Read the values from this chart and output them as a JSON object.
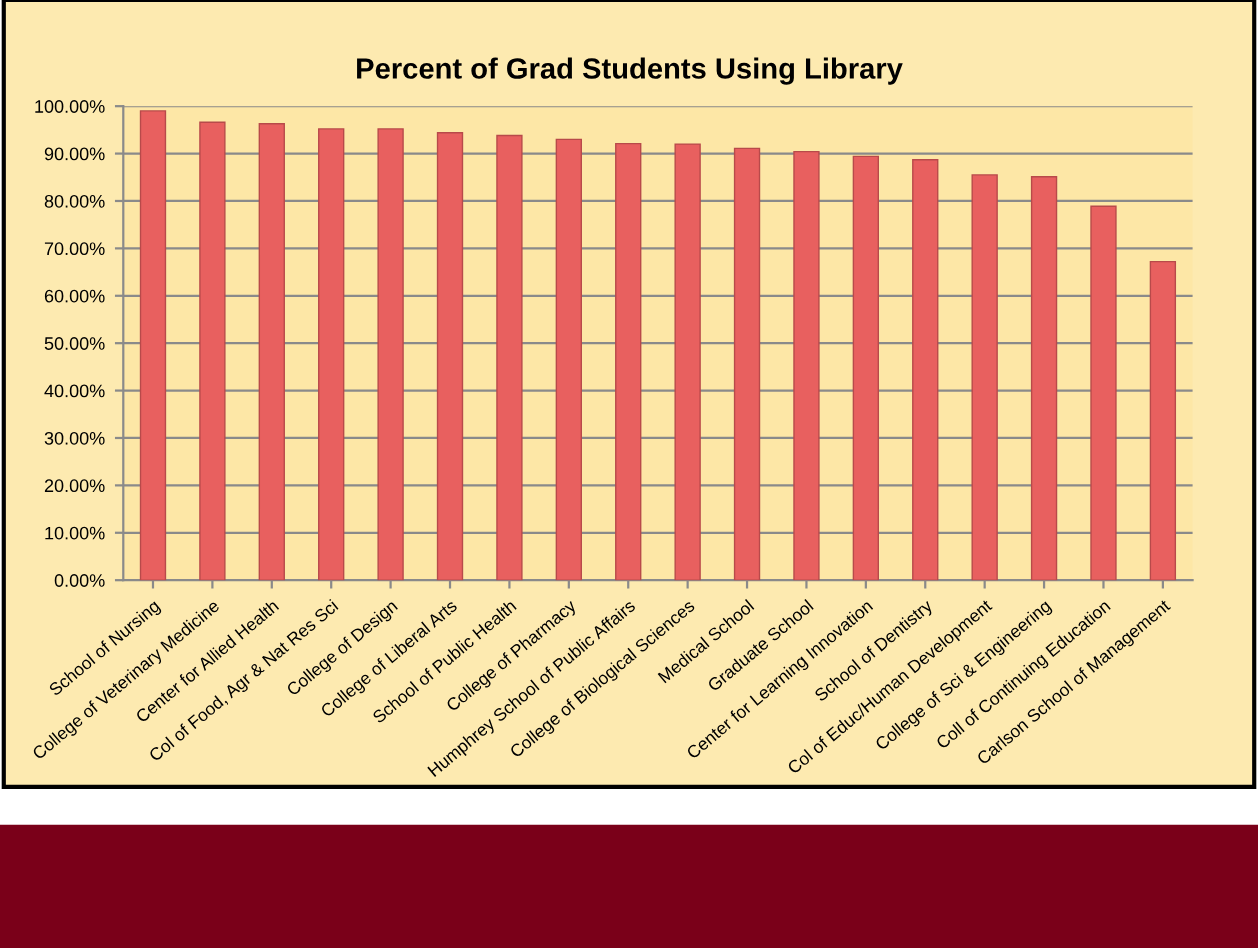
{
  "chart_data": {
    "type": "bar",
    "title": "Percent of Grad Students Using Library",
    "categories": [
      "School of Nursing",
      "College of Veterinary Medicine",
      "Center for Allied Health",
      "Col of Food, Agr & Nat Res Sci",
      "College of Design",
      "College of Liberal Arts",
      "School of Public Health",
      "College of Pharmacy",
      "Humphrey School of Public Affairs",
      "College of Biological Sciences",
      "Medical School",
      "Graduate School",
      "Center for Learning Innovation",
      "School of Dentistry",
      "Col of Educ/Human Development",
      "College of Sci & Engineering",
      "Coll of Continuing Education",
      "Carlson School of Management"
    ],
    "values": [
      99.0,
      96.6,
      96.3,
      95.2,
      95.2,
      94.4,
      93.8,
      93.0,
      92.1,
      92.0,
      91.1,
      90.4,
      89.4,
      88.7,
      85.5,
      85.1,
      78.9,
      67.2
    ],
    "color": "#e8605f",
    "ylim": [
      0,
      100
    ],
    "yticks": [
      {
        "value": 0,
        "label": "0.00%"
      },
      {
        "value": 10,
        "label": "10.00%"
      },
      {
        "value": 20,
        "label": "20.00%"
      },
      {
        "value": 30,
        "label": "30.00%"
      },
      {
        "value": 40,
        "label": "40.00%"
      },
      {
        "value": 50,
        "label": "50.00%"
      },
      {
        "value": 60,
        "label": "60.00%"
      },
      {
        "value": 70,
        "label": "70.00%"
      },
      {
        "value": 80,
        "label": "80.00%"
      },
      {
        "value": 90,
        "label": "90.00%"
      },
      {
        "value": 100,
        "label": "100.00%"
      }
    ],
    "grid": "y"
  }
}
